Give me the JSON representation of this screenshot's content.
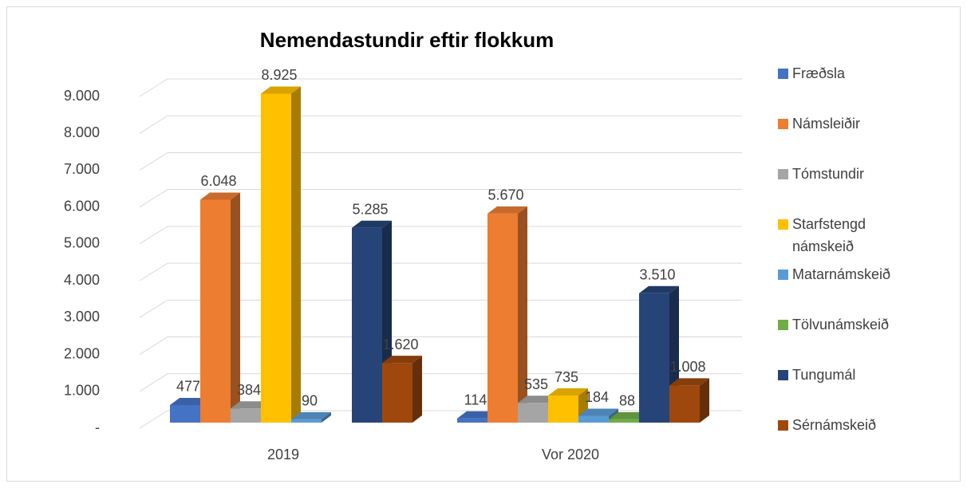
{
  "chart_data": {
    "type": "bar3d",
    "title": "Nemendastundir eftir flokkum",
    "categories": [
      "2019",
      "Vor 2020"
    ],
    "series": [
      {
        "name": "Fræðsla",
        "color": "#4472c4",
        "values": [
          477,
          114
        ],
        "value_labels": [
          "477",
          "114"
        ]
      },
      {
        "name": "Námsleiðir",
        "color": "#ed7d31",
        "values": [
          6048,
          5670
        ],
        "value_labels": [
          "6.048",
          "5.670"
        ]
      },
      {
        "name": "Tómstundir",
        "color": "#a5a5a5",
        "values": [
          384,
          535
        ],
        "value_labels": [
          "384",
          "535"
        ]
      },
      {
        "name": "Starfstengd námskeið",
        "color": "#ffc000",
        "values": [
          8925,
          735
        ],
        "value_labels": [
          "8.925",
          "735"
        ]
      },
      {
        "name": "Matarnámskeið",
        "color": "#5b9bd5",
        "values": [
          90,
          184
        ],
        "value_labels": [
          "90",
          "184"
        ]
      },
      {
        "name": "Tölvunámskeið",
        "color": "#70ad47",
        "values": [
          null,
          88
        ],
        "value_labels": [
          null,
          "88"
        ]
      },
      {
        "name": "Tungumál",
        "color": "#264478",
        "values": [
          5285,
          3510
        ],
        "value_labels": [
          "5.285",
          "3.510"
        ]
      },
      {
        "name": "Sérnámskeið",
        "color": "#9e480e",
        "values": [
          1620,
          1008
        ],
        "value_labels": [
          "1.620",
          "1.008"
        ]
      }
    ],
    "ylim": [
      0,
      9000
    ],
    "yticks": [
      {
        "value": 0,
        "label": "-"
      },
      {
        "value": 1000,
        "label": "1.000"
      },
      {
        "value": 2000,
        "label": "2.000"
      },
      {
        "value": 3000,
        "label": "3.000"
      },
      {
        "value": 4000,
        "label": "4.000"
      },
      {
        "value": 5000,
        "label": "5.000"
      },
      {
        "value": 6000,
        "label": "6.000"
      },
      {
        "value": 7000,
        "label": "7.000"
      },
      {
        "value": 8000,
        "label": "8.000"
      },
      {
        "value": 9000,
        "label": "9.000"
      }
    ],
    "grid": true,
    "legend": "right"
  }
}
